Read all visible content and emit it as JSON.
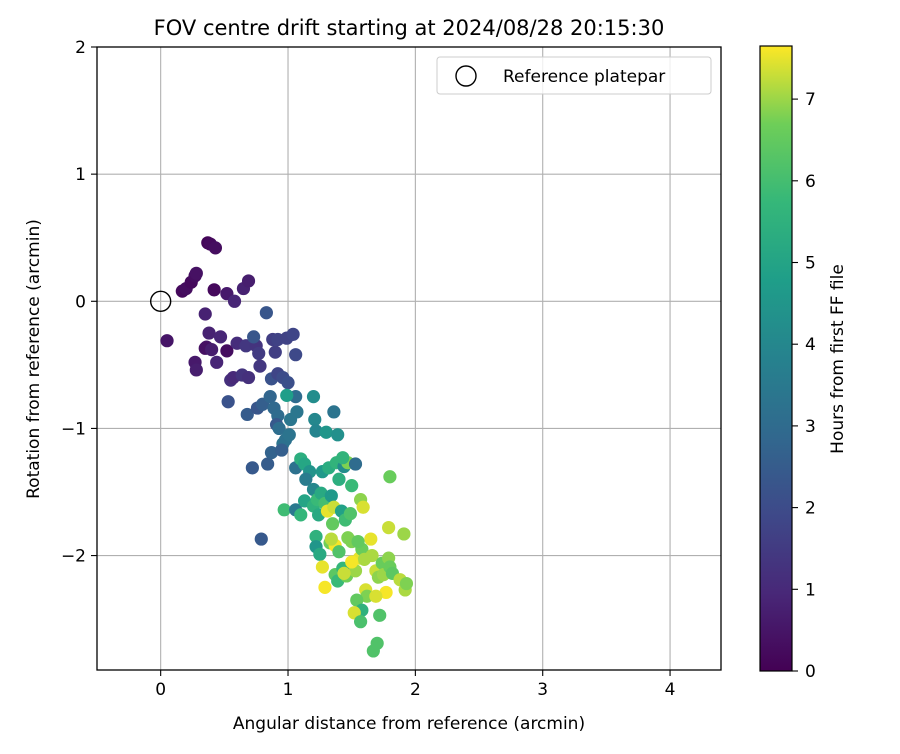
{
  "chart_data": {
    "type": "scatter",
    "title": "FOV centre drift starting at 2024/08/28 20:15:30",
    "xlabel": "Angular distance from reference (arcmin)",
    "ylabel": "Rotation from reference (arcmin)",
    "xlim": [
      -0.5,
      4.4
    ],
    "ylim": [
      -2.9,
      2.0
    ],
    "xticks": [
      "0",
      "1",
      "2",
      "3",
      "4"
    ],
    "yticks": [
      "−2",
      "−1",
      "0",
      "1",
      "2"
    ],
    "xtick_values": [
      0,
      1,
      2,
      3,
      4
    ],
    "ytick_values": [
      -2,
      -1,
      0,
      1,
      2
    ],
    "grid": true,
    "legend": {
      "label": "Reference platepar",
      "placement": "top-right",
      "marker": "open-circle"
    },
    "reference": {
      "x": 0,
      "y": 0
    },
    "colorbar": {
      "label": "Hours from first FF file",
      "colormap": "viridis",
      "range": [
        0,
        7.65
      ],
      "ticks": [
        "0",
        "1",
        "2",
        "3",
        "4",
        "5",
        "6",
        "7"
      ],
      "tick_values": [
        0,
        1,
        2,
        3,
        4,
        5,
        6,
        7
      ]
    },
    "points": [
      [
        0.05,
        -0.31,
        0.5
      ],
      [
        0.17,
        0.08,
        0.2
      ],
      [
        0.2,
        0.1,
        0.3
      ],
      [
        0.24,
        0.15,
        0.2
      ],
      [
        0.27,
        0.2,
        0.3
      ],
      [
        0.28,
        0.22,
        0.4
      ],
      [
        0.37,
        0.46,
        0.1
      ],
      [
        0.39,
        0.45,
        0.2
      ],
      [
        0.43,
        0.42,
        0.3
      ],
      [
        0.42,
        0.09,
        0.2
      ],
      [
        0.52,
        0.06,
        0.6
      ],
      [
        0.58,
        0.0,
        0.9
      ],
      [
        0.65,
        0.1,
        0.8
      ],
      [
        0.69,
        0.16,
        0.7
      ],
      [
        0.35,
        -0.1,
        0.8
      ],
      [
        0.38,
        -0.25,
        0.8
      ],
      [
        0.36,
        -0.36,
        0.5
      ],
      [
        0.35,
        -0.37,
        0.4
      ],
      [
        0.4,
        -0.38,
        0.7
      ],
      [
        0.47,
        -0.28,
        0.9
      ],
      [
        0.52,
        -0.39,
        0.3
      ],
      [
        0.27,
        -0.48,
        0.6
      ],
      [
        0.28,
        -0.54,
        0.7
      ],
      [
        0.44,
        -0.48,
        0.9
      ],
      [
        0.55,
        -0.62,
        1.2
      ],
      [
        0.57,
        -0.6,
        1.0
      ],
      [
        0.6,
        -0.33,
        1.1
      ],
      [
        0.64,
        -0.58,
        1.3
      ],
      [
        0.69,
        -0.6,
        1.2
      ],
      [
        0.67,
        -0.35,
        1.4
      ],
      [
        0.75,
        -0.35,
        1.3
      ],
      [
        0.73,
        -0.28,
        2.3
      ],
      [
        0.77,
        -0.41,
        1.5
      ],
      [
        0.78,
        -0.51,
        1.4
      ],
      [
        0.83,
        -0.09,
        2.3
      ],
      [
        0.87,
        -0.61,
        2.2
      ],
      [
        0.88,
        -0.3,
        1.6
      ],
      [
        0.92,
        -0.3,
        1.7
      ],
      [
        0.9,
        -0.4,
        1.6
      ],
      [
        0.92,
        -0.57,
        1.8
      ],
      [
        0.96,
        -0.6,
        2.0
      ],
      [
        1.0,
        -0.64,
        2.1
      ],
      [
        0.99,
        -0.29,
        1.7
      ],
      [
        1.04,
        -0.26,
        1.8
      ],
      [
        1.06,
        -0.42,
        1.9
      ],
      [
        0.53,
        -0.79,
        2.2
      ],
      [
        0.68,
        -0.89,
        2.5
      ],
      [
        0.76,
        -0.84,
        2.3
      ],
      [
        0.8,
        -0.81,
        2.6
      ],
      [
        0.86,
        -0.75,
        2.8
      ],
      [
        0.89,
        -0.84,
        2.9
      ],
      [
        0.92,
        -0.9,
        3.0
      ],
      [
        0.91,
        -0.97,
        2.4
      ],
      [
        0.93,
        -1.0,
        3.1
      ],
      [
        0.96,
        -1.12,
        3.3
      ],
      [
        0.98,
        -1.09,
        3.2
      ],
      [
        1.01,
        -1.05,
        3.3
      ],
      [
        1.02,
        -0.93,
        3.4
      ],
      [
        1.06,
        -0.75,
        3.0
      ],
      [
        0.99,
        -0.74,
        4.8
      ],
      [
        1.07,
        -0.87,
        3.4
      ],
      [
        1.2,
        -0.75,
        4.2
      ],
      [
        1.21,
        -0.93,
        4.0
      ],
      [
        1.22,
        -1.02,
        3.9
      ],
      [
        1.3,
        -1.03,
        4.5
      ],
      [
        1.36,
        -0.87,
        3.3
      ],
      [
        1.39,
        -1.05,
        4.3
      ],
      [
        0.72,
        -1.31,
        2.4
      ],
      [
        0.84,
        -1.28,
        2.5
      ],
      [
        0.87,
        -1.19,
        2.7
      ],
      [
        0.95,
        -1.17,
        2.6
      ],
      [
        1.06,
        -1.31,
        3.2
      ],
      [
        1.1,
        -1.24,
        5.4
      ],
      [
        1.13,
        -1.28,
        5.1
      ],
      [
        1.17,
        -1.34,
        4.4
      ],
      [
        1.14,
        -1.4,
        3.6
      ],
      [
        1.2,
        -1.48,
        4.0
      ],
      [
        1.27,
        -1.34,
        4.6
      ],
      [
        1.32,
        -1.31,
        5.3
      ],
      [
        1.38,
        -1.27,
        5.6
      ],
      [
        1.44,
        -1.3,
        4.2
      ],
      [
        1.47,
        -1.27,
        6.8
      ],
      [
        1.43,
        -1.23,
        5.6
      ],
      [
        1.53,
        -1.28,
        3.0
      ],
      [
        0.79,
        -1.87,
        2.4
      ],
      [
        0.97,
        -1.64,
        5.9
      ],
      [
        1.06,
        -1.64,
        3.5
      ],
      [
        1.1,
        -1.68,
        5.7
      ],
      [
        1.13,
        -1.57,
        5.0
      ],
      [
        1.2,
        -1.61,
        5.5
      ],
      [
        1.23,
        -1.56,
        5.8
      ],
      [
        1.24,
        -1.68,
        5.2
      ],
      [
        1.26,
        -1.51,
        5.2
      ],
      [
        1.29,
        -1.59,
        6.0
      ],
      [
        1.31,
        -1.65,
        7.5
      ],
      [
        1.34,
        -1.53,
        4.6
      ],
      [
        1.35,
        -1.75,
        6.5
      ],
      [
        1.36,
        -1.62,
        7.3
      ],
      [
        1.4,
        -1.4,
        5.4
      ],
      [
        1.42,
        -1.65,
        4.9
      ],
      [
        1.45,
        -1.72,
        5.9
      ],
      [
        1.49,
        -1.67,
        6.2
      ],
      [
        1.5,
        -1.45,
        5.8
      ],
      [
        1.57,
        -1.56,
        6.9
      ],
      [
        1.59,
        -1.62,
        7.4
      ],
      [
        1.22,
        -1.85,
        5.5
      ],
      [
        1.22,
        -1.93,
        4.5
      ],
      [
        1.25,
        -1.99,
        5.2
      ],
      [
        1.27,
        -2.09,
        7.5
      ],
      [
        1.29,
        -2.25,
        7.6
      ],
      [
        1.33,
        -1.9,
        6.7
      ],
      [
        1.37,
        -1.92,
        7.6
      ],
      [
        1.4,
        -1.97,
        6.2
      ],
      [
        1.37,
        -2.15,
        6.4
      ],
      [
        1.39,
        -2.2,
        5.8
      ],
      [
        1.43,
        -2.1,
        5.7
      ],
      [
        1.46,
        -2.16,
        6.7
      ],
      [
        1.47,
        -1.86,
        6.8
      ],
      [
        1.5,
        -1.89,
        6.8
      ],
      [
        1.53,
        -2.12,
        7.0
      ],
      [
        1.56,
        -2.02,
        7.5
      ],
      [
        1.58,
        -1.95,
        6.6
      ],
      [
        1.6,
        -2.03,
        7.1
      ],
      [
        1.61,
        -2.27,
        7.4
      ],
      [
        1.62,
        -2.32,
        6.8
      ],
      [
        1.54,
        -2.35,
        6.5
      ],
      [
        1.58,
        -2.43,
        5.5
      ],
      [
        1.52,
        -2.45,
        7.4
      ],
      [
        1.57,
        -2.52,
        6.1
      ],
      [
        1.66,
        -2.0,
        7.1
      ],
      [
        1.69,
        -2.12,
        7.3
      ],
      [
        1.71,
        -2.17,
        6.9
      ],
      [
        1.72,
        -2.47,
        6.2
      ],
      [
        1.74,
        -2.06,
        6.6
      ],
      [
        1.75,
        -2.15,
        7.0
      ],
      [
        1.77,
        -2.29,
        7.6
      ],
      [
        1.79,
        -2.02,
        6.9
      ],
      [
        1.8,
        -2.09,
        6.6
      ],
      [
        1.82,
        -2.14,
        6.4
      ],
      [
        1.67,
        -2.75,
        6.2
      ],
      [
        1.7,
        -2.69,
        6.2
      ],
      [
        1.79,
        -1.78,
        7.3
      ],
      [
        1.8,
        -1.38,
        6.6
      ],
      [
        1.88,
        -2.19,
        7.2
      ],
      [
        1.91,
        -1.83,
        7.0
      ],
      [
        1.92,
        -2.27,
        7.1
      ],
      [
        1.93,
        -2.22,
        6.8
      ],
      [
        1.65,
        -1.87,
        7.5
      ],
      [
        1.55,
        -1.89,
        6.5
      ],
      [
        1.5,
        -2.05,
        7.6
      ],
      [
        1.44,
        -2.14,
        7.3
      ],
      [
        1.69,
        -2.32,
        7.4
      ],
      [
        1.34,
        -1.87,
        7.2
      ]
    ]
  }
}
